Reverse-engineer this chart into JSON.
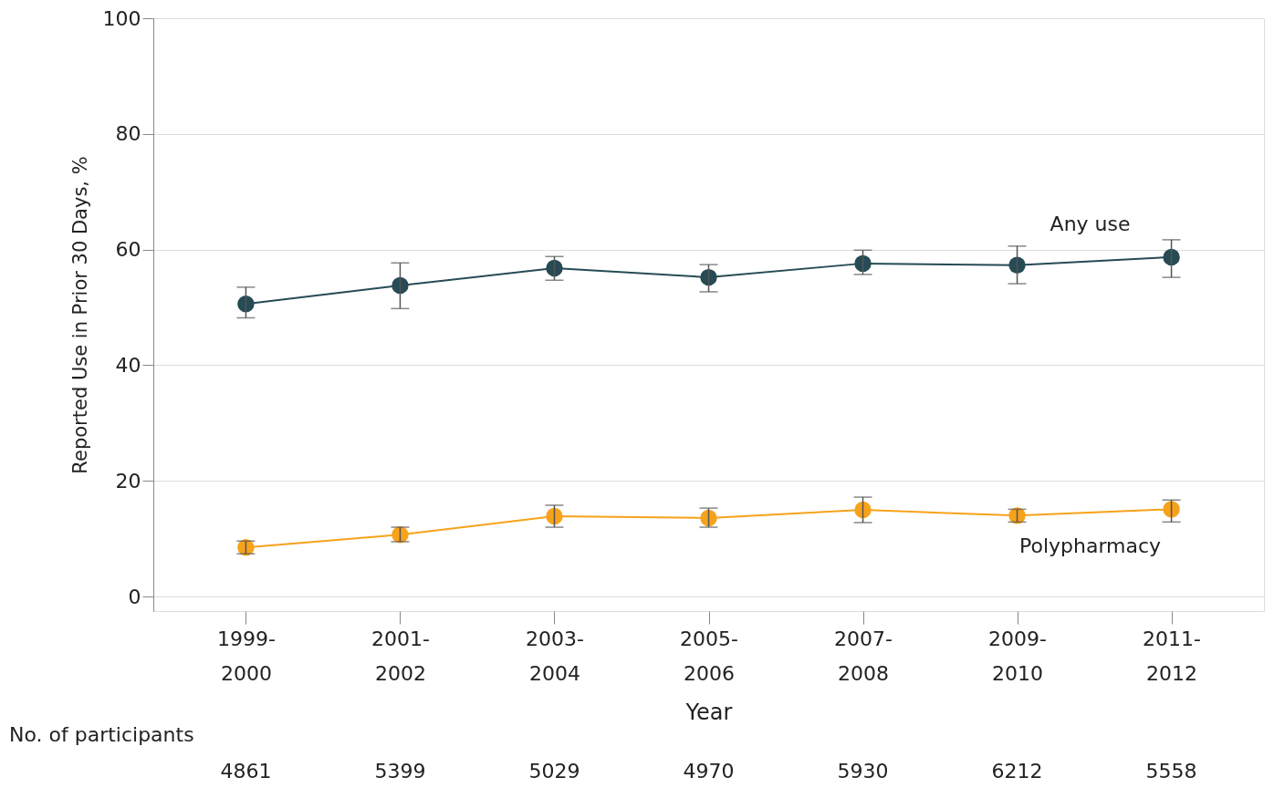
{
  "chart_data": {
    "type": "line",
    "xlabel": "Year",
    "ylabel": "Reported Use in Prior 30 Days, %",
    "categories": [
      "1999-2000",
      "2001-2002",
      "2003-2004",
      "2005-2006",
      "2007-2008",
      "2009-2010",
      "2011-2012"
    ],
    "series": [
      {
        "name": "Any use",
        "color": "#264b55",
        "values": [
          50.6,
          53.8,
          56.8,
          55.2,
          57.6,
          57.3,
          58.7
        ],
        "errors": [
          [
            48.2,
            53.5
          ],
          [
            49.8,
            57.7
          ],
          [
            54.7,
            58.8
          ],
          [
            52.7,
            57.4
          ],
          [
            55.7,
            59.9
          ],
          [
            54.1,
            60.6
          ],
          [
            55.2,
            61.7
          ]
        ]
      },
      {
        "name": "Polypharmacy",
        "color": "#f7a21b",
        "values": [
          8.5,
          10.7,
          13.9,
          13.6,
          15.0,
          14.0,
          15.1
        ],
        "errors": [
          [
            7.4,
            9.6
          ],
          [
            9.5,
            12.0
          ],
          [
            12.0,
            15.8
          ],
          [
            12.0,
            15.3
          ],
          [
            12.8,
            17.2
          ],
          [
            12.9,
            15.1
          ],
          [
            12.9,
            16.7
          ]
        ]
      }
    ],
    "ylim": [
      -2.5,
      100
    ],
    "yticks": [
      0,
      20,
      40,
      60,
      80,
      100
    ],
    "grid": "y",
    "legend": false,
    "marker": "circle",
    "line_style": "solid",
    "annotations": [
      "No. of participants",
      "4861",
      "5399",
      "5029",
      "4970",
      "5930",
      "6212",
      "5558"
    ]
  }
}
